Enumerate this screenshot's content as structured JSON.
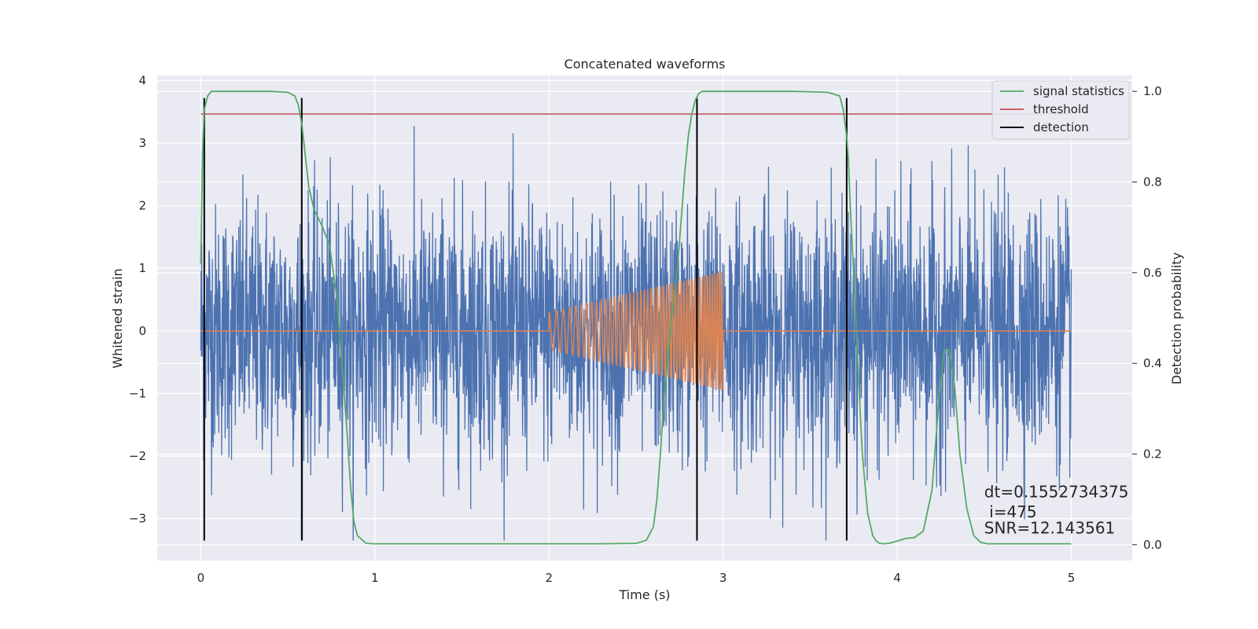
{
  "chart_data": {
    "type": "line",
    "title": "Concatenated waveforms",
    "xlabel": "Time (s)",
    "ylabel": "Whitened strain",
    "y2label": "Detection probability",
    "xlim": [
      -0.25,
      5.35
    ],
    "ylim": [
      -3.67,
      4.08
    ],
    "y2lim": [
      -0.035,
      1.035
    ],
    "grid": true,
    "legend_position": "top-right",
    "x_ticks": [
      0,
      1,
      2,
      3,
      4,
      5
    ],
    "x_tick_labels": [
      "0",
      "1",
      "2",
      "3",
      "4",
      "5"
    ],
    "y_ticks": [
      -3,
      -2,
      -1,
      0,
      1,
      2,
      3,
      4
    ],
    "y_tick_labels": [
      "−3",
      "−2",
      "−1",
      "0",
      "1",
      "2",
      "3",
      "4"
    ],
    "y2_ticks": [
      0.0,
      0.2,
      0.4,
      0.6,
      0.8,
      1.0
    ],
    "y2_tick_labels": [
      "0.0",
      "0.2",
      "0.4",
      "0.6",
      "0.8",
      "1.0"
    ],
    "noise": {
      "x_range": [
        0,
        5
      ],
      "n_points": 3000,
      "envelope": 1.0,
      "extreme_range": [
        -3.35,
        3.7
      ],
      "color": "#4c72b0"
    },
    "chirp": {
      "start": 2.0,
      "end": 3.0,
      "amp_start": 0.3,
      "amp_end": 0.95,
      "freq_start": 22,
      "freq_end": 75,
      "color": "#dd8452"
    },
    "series": [
      {
        "name": "signal statistics",
        "axis": "right",
        "color": "#55a868",
        "x": [
          0.0,
          0.01,
          0.02,
          0.04,
          0.06,
          0.1,
          0.2,
          0.3,
          0.4,
          0.5,
          0.54,
          0.56,
          0.58,
          0.6,
          0.62,
          0.65,
          0.7,
          0.74,
          0.78,
          0.8,
          0.84,
          0.86,
          0.88,
          0.9,
          0.95,
          1.0,
          1.5,
          2.0,
          2.3,
          2.5,
          2.56,
          2.6,
          2.62,
          2.64,
          2.66,
          2.7,
          2.74,
          2.76,
          2.78,
          2.8,
          2.82,
          2.84,
          2.86,
          2.88,
          2.9,
          2.95,
          3.0,
          3.2,
          3.4,
          3.6,
          3.67,
          3.69,
          3.71,
          3.72,
          3.73,
          3.75,
          3.78,
          3.8,
          3.83,
          3.86,
          3.88,
          3.9,
          3.92,
          3.95,
          4.0,
          4.05,
          4.1,
          4.15,
          4.2,
          4.24,
          4.27,
          4.3,
          4.33,
          4.36,
          4.4,
          4.44,
          4.48,
          4.52,
          4.6,
          4.8,
          5.0
        ],
        "y": [
          0.62,
          0.86,
          0.96,
          0.99,
          1.0,
          1.0,
          1.0,
          1.0,
          1.0,
          0.998,
          0.99,
          0.97,
          0.93,
          0.86,
          0.79,
          0.74,
          0.7,
          0.66,
          0.55,
          0.45,
          0.25,
          0.13,
          0.05,
          0.02,
          0.003,
          0.002,
          0.002,
          0.002,
          0.002,
          0.003,
          0.01,
          0.04,
          0.1,
          0.2,
          0.32,
          0.48,
          0.62,
          0.72,
          0.82,
          0.9,
          0.95,
          0.98,
          0.995,
          1.0,
          1.0,
          1.0,
          1.0,
          1.0,
          1.0,
          0.998,
          0.99,
          0.96,
          0.9,
          0.85,
          0.75,
          0.6,
          0.35,
          0.2,
          0.07,
          0.02,
          0.008,
          0.003,
          0.002,
          0.003,
          0.008,
          0.014,
          0.016,
          0.03,
          0.12,
          0.32,
          0.43,
          0.43,
          0.35,
          0.2,
          0.08,
          0.02,
          0.005,
          0.002,
          0.002,
          0.002,
          0.002
        ]
      },
      {
        "name": "threshold",
        "axis": "right",
        "color": "#c44e52",
        "x": [
          0,
          5
        ],
        "y": [
          0.95,
          0.95
        ]
      },
      {
        "name": "detection",
        "axis": "left",
        "color": "#000000",
        "x": [
          0.02,
          0.58,
          2.85,
          3.71
        ],
        "y_range": [
          -3.35,
          3.72
        ]
      }
    ],
    "annotations": [
      {
        "text": "dt=0.1552734375",
        "x": 4.5,
        "y2": 0.105
      },
      {
        "text": " i=475",
        "x": 4.5,
        "y2": 0.06
      },
      {
        "text": "SNR=12.143561",
        "x": 4.5,
        "y2": 0.025
      }
    ]
  }
}
